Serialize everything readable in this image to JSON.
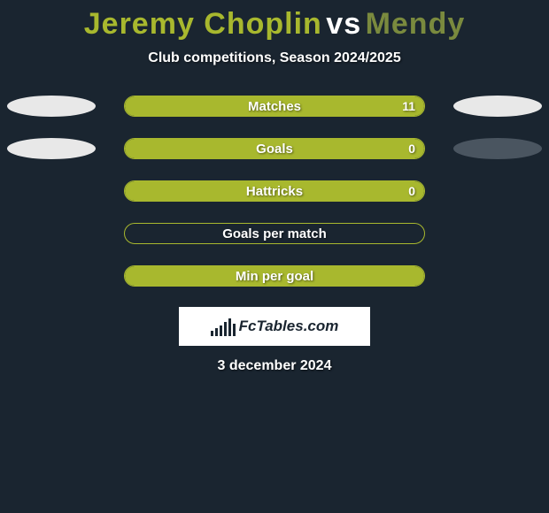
{
  "title": {
    "player1": "Jeremy Choplin",
    "vs": "vs",
    "player2": "Mendy",
    "player1_color": "#a8b82e",
    "vs_color": "#ffffff",
    "player2_color": "#7a8a3e",
    "fontsize": 34
  },
  "subtitle": "Club competitions, Season 2024/2025",
  "background_color": "#1a2530",
  "accent_color": "#a8b82e",
  "text_color": "#ffffff",
  "bar_track_width": 340,
  "oval_light": "#e8e8e8",
  "oval_dark": "#4a5560",
  "rows": [
    {
      "label": "Matches",
      "value": "11",
      "fill_pct": 100,
      "show_ovals": true,
      "right_oval_dark": false
    },
    {
      "label": "Goals",
      "value": "0",
      "fill_pct": 100,
      "show_ovals": true,
      "right_oval_dark": true
    },
    {
      "label": "Hattricks",
      "value": "0",
      "fill_pct": 100,
      "show_ovals": false
    },
    {
      "label": "Goals per match",
      "value": "",
      "fill_pct": 0,
      "show_ovals": false
    },
    {
      "label": "Min per goal",
      "value": "",
      "fill_pct": 100,
      "show_ovals": false
    }
  ],
  "logo_text": "FcTables.com",
  "logo_bar_heights": [
    6,
    9,
    12,
    16,
    20,
    14
  ],
  "date": "3 december 2024"
}
